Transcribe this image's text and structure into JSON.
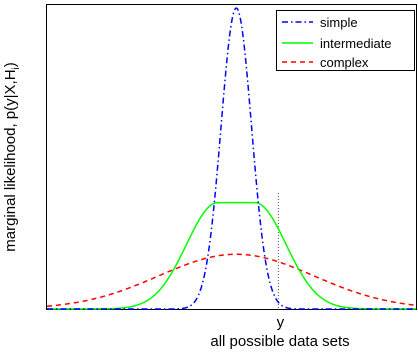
{
  "chart_data": {
    "type": "line",
    "title": "",
    "xlabel": "all possible data sets",
    "ylabel": "marginal likelihood, p(y|X,H",
    "ylabel_subscript": "i",
    "ylabel_close": ")",
    "marker_label": "y",
    "xlim": [
      0,
      1
    ],
    "ylim": [
      0,
      1
    ],
    "x_ticks_shown": false,
    "y_ticks_shown": false,
    "grid": false,
    "legend_position": "top-right",
    "marker_x": 0.627,
    "series": [
      {
        "name": "simple",
        "style": "dash-dot",
        "color": "#0000ff",
        "mean": 0.513,
        "sd": 0.0413,
        "peak": 0.99
      },
      {
        "name": "intermediate",
        "style": "solid",
        "color": "#00ff00",
        "mean": 0.513,
        "plateau_halfwidth": 0.05,
        "sd": 0.085,
        "peak": 0.35
      },
      {
        "name": "complex",
        "style": "dashed",
        "color": "#ff0000",
        "mean": 0.513,
        "sd": 0.21,
        "peak": 0.18
      }
    ]
  }
}
